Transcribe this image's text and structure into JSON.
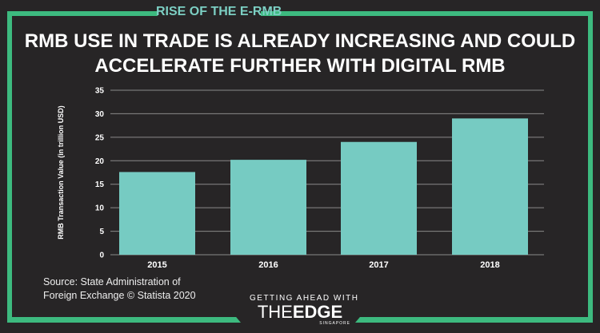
{
  "header": {
    "kicker": "RISE OF THE E-RMB",
    "title": "RMB use in trade is already increasing and could accelerate further with digital RMB"
  },
  "colors": {
    "background": "#272526",
    "frame": "#3dba7f",
    "bar": "#76cbc2",
    "kicker": "#7ccfc3"
  },
  "chart_data": {
    "type": "bar",
    "categories": [
      "2015",
      "2016",
      "2017",
      "2018"
    ],
    "values": [
      17.6,
      20.2,
      24.0,
      29.0
    ],
    "title": "",
    "xlabel": "",
    "ylabel": "RMB Transaction Value (in trillion USD)",
    "ylim": [
      0,
      35
    ],
    "yticks": [
      0,
      5,
      10,
      15,
      20,
      25,
      30,
      35
    ],
    "grid": true
  },
  "footer": {
    "source_line1": "Source: State Administration of",
    "source_line2": "Foreign Exchange © Statista 2020",
    "logo": {
      "tagline": "GETTING AHEAD WITH",
      "brand_the": "THE",
      "brand_edge": "EDGE",
      "region": "SINGAPORE"
    }
  }
}
